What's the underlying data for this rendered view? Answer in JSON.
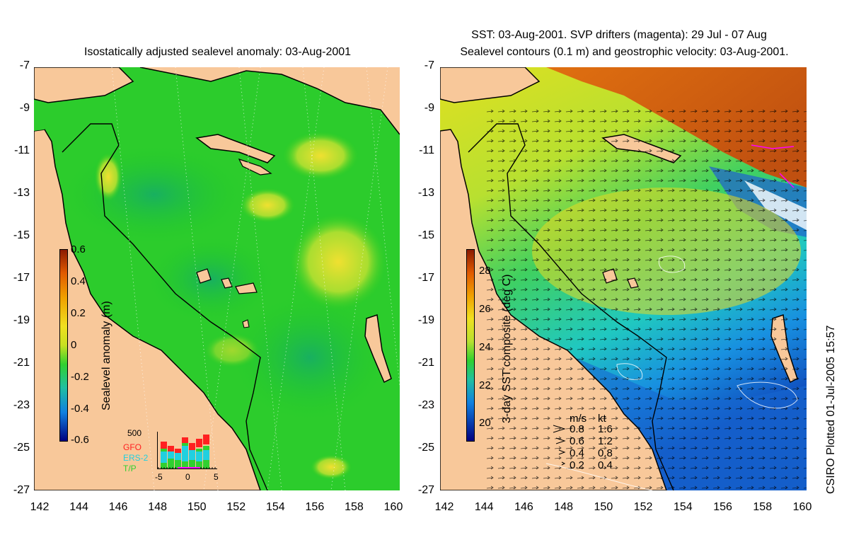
{
  "left": {
    "title": "Isostatically adjusted sealevel anomaly: 03-Aug-2001",
    "colorbar": {
      "label": "Sealevel anomaly (m)",
      "ticks": [
        "0.6",
        "0.4",
        "0.2",
        "0",
        "-0.2",
        "-0.4",
        "-0.6"
      ]
    },
    "histogram": {
      "ymax_label": "500",
      "x_ticks": [
        "-5",
        "0",
        "5"
      ],
      "satellites": [
        {
          "name": "GFO",
          "color": "#ff2020"
        },
        {
          "name": "ERS-2",
          "color": "#20d0e0"
        },
        {
          "name": "T/P",
          "color": "#30d030"
        }
      ]
    }
  },
  "right": {
    "title_line1": "SST: 03-Aug-2001. SVP drifters (magenta): 29 Jul - 07 Aug",
    "title_line2": "Sealevel contours (0.1 m) and geostrophic velocity: 03-Aug-2001.",
    "colorbar": {
      "label": "3-day SST composite (deg C)",
      "ticks": [
        "28",
        "26",
        "24",
        "22",
        "20"
      ]
    },
    "velocity_legend": {
      "header_ms": "m/s",
      "header_kt": "kt",
      "rows": [
        {
          "ms": "0.8",
          "kt": "1.6"
        },
        {
          "ms": "0.6",
          "kt": "1.2"
        },
        {
          "ms": "0.4",
          "kt": "0.8"
        },
        {
          "ms": "0.2",
          "kt": "0.4"
        }
      ]
    }
  },
  "axes": {
    "y_ticks": [
      "-7",
      "-9",
      "-11",
      "-13",
      "-15",
      "-17",
      "-19",
      "-21",
      "-23",
      "-25",
      "-27"
    ],
    "x_ticks": [
      "142",
      "144",
      "146",
      "148",
      "150",
      "152",
      "154",
      "156",
      "158",
      "160"
    ]
  },
  "side_label": "CSIRO Plotted 01-Jul-2005 15:57",
  "colors": {
    "land": "#f8c89a",
    "sea_base": "#22cc22",
    "coast": "#000000"
  }
}
